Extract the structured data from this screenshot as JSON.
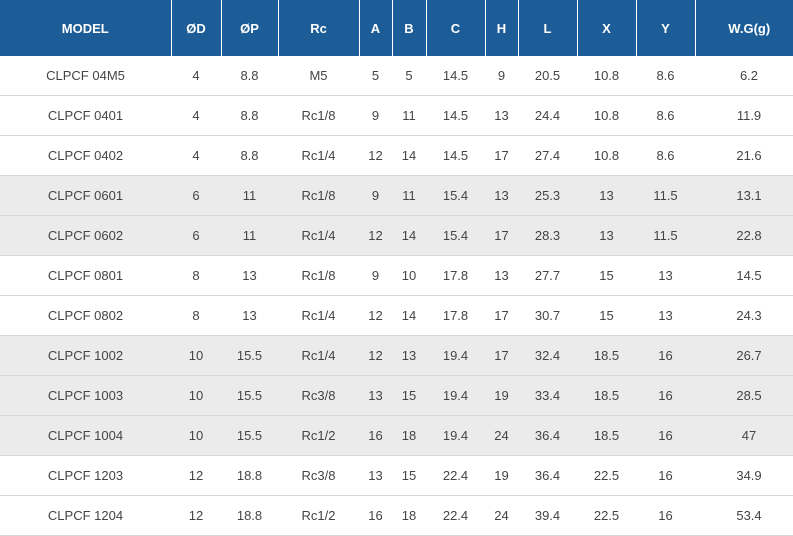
{
  "table": {
    "headers": [
      "MODEL",
      "ØD",
      "ØP",
      "Rc",
      "A",
      "B",
      "C",
      "H",
      "L",
      "X",
      "Y",
      "W.G(g)"
    ],
    "rows": [
      [
        "CLPCF 04M5",
        "4",
        "8.8",
        "M5",
        "5",
        "5",
        "14.5",
        "9",
        "20.5",
        "10.8",
        "8.6",
        "6.2"
      ],
      [
        "CLPCF 0401",
        "4",
        "8.8",
        "Rc1/8",
        "9",
        "11",
        "14.5",
        "13",
        "24.4",
        "10.8",
        "8.6",
        "11.9"
      ],
      [
        "CLPCF 0402",
        "4",
        "8.8",
        "Rc1/4",
        "12",
        "14",
        "14.5",
        "17",
        "27.4",
        "10.8",
        "8.6",
        "21.6"
      ],
      [
        "CLPCF 0601",
        "6",
        "11",
        "Rc1/8",
        "9",
        "11",
        "15.4",
        "13",
        "25.3",
        "13",
        "11.5",
        "13.1"
      ],
      [
        "CLPCF 0602",
        "6",
        "11",
        "Rc1/4",
        "12",
        "14",
        "15.4",
        "17",
        "28.3",
        "13",
        "11.5",
        "22.8"
      ],
      [
        "CLPCF 0801",
        "8",
        "13",
        "Rc1/8",
        "9",
        "10",
        "17.8",
        "13",
        "27.7",
        "15",
        "13",
        "14.5"
      ],
      [
        "CLPCF 0802",
        "8",
        "13",
        "Rc1/4",
        "12",
        "14",
        "17.8",
        "17",
        "30.7",
        "15",
        "13",
        "24.3"
      ],
      [
        "CLPCF 1002",
        "10",
        "15.5",
        "Rc1/4",
        "12",
        "13",
        "19.4",
        "17",
        "32.4",
        "18.5",
        "16",
        "26.7"
      ],
      [
        "CLPCF 1003",
        "10",
        "15.5",
        "Rc3/8",
        "13",
        "15",
        "19.4",
        "19",
        "33.4",
        "18.5",
        "16",
        "28.5"
      ],
      [
        "CLPCF 1004",
        "10",
        "15.5",
        "Rc1/2",
        "16",
        "18",
        "19.4",
        "24",
        "36.4",
        "18.5",
        "16",
        "47"
      ],
      [
        "CLPCF 1203",
        "12",
        "18.8",
        "Rc3/8",
        "13",
        "15",
        "22.4",
        "19",
        "36.4",
        "22.5",
        "16",
        "34.9"
      ],
      [
        "CLPCF 1204",
        "12",
        "18.8",
        "Rc1/2",
        "16",
        "18",
        "22.4",
        "24",
        "39.4",
        "22.5",
        "16",
        "53.4"
      ]
    ],
    "shaded_rows": [
      3,
      4,
      7,
      8,
      9
    ],
    "colors": {
      "header_bg": "#1d5d97",
      "header_text": "#ffffff",
      "shaded_bg": "#ebebeb",
      "text": "#444444"
    }
  }
}
